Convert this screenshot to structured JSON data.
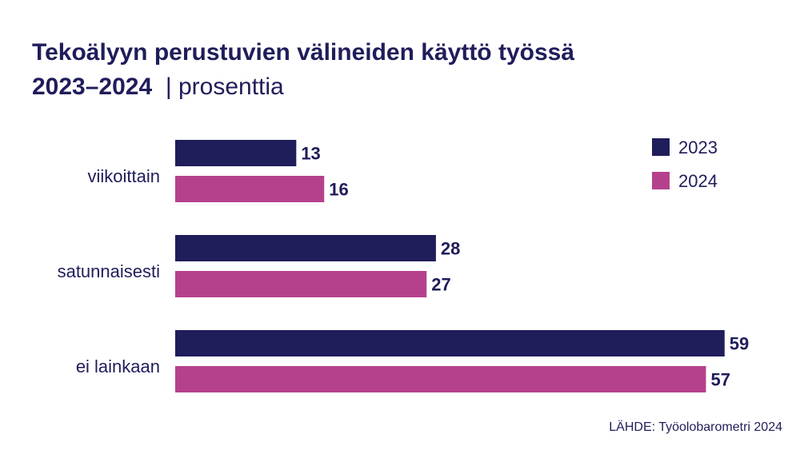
{
  "chart_data": {
    "type": "bar",
    "orientation": "horizontal",
    "title_line1": "Tekoälyyn perustuvien välineiden käyttö työssä",
    "title_line2": "2023–2024",
    "unit": "| prosenttia",
    "categories": [
      "viikoittain",
      "satunnaisesti",
      "ei lainkaan"
    ],
    "series": [
      {
        "name": "2023",
        "color": "#1f1d5a",
        "values": [
          13,
          28,
          59
        ]
      },
      {
        "name": "2024",
        "color": "#b5418c",
        "values": [
          16,
          27,
          57
        ]
      }
    ],
    "xlim": [
      0,
      60
    ],
    "grid": false,
    "legend": "top-right",
    "source": "LÄHDE: Työolobarometri 2024"
  }
}
